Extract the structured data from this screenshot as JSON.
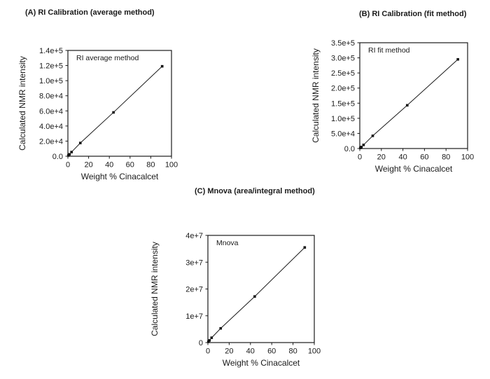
{
  "page": {
    "background": "#ffffff",
    "text_color": "#1a1a1a",
    "plot_color": "#1a1a1a"
  },
  "chart_data": [
    {
      "type": "scatter",
      "panel": "A",
      "title": "(A) RI Calibration (average method)",
      "legend": "RI average method",
      "xlabel": "Weight % Cinacalcet",
      "ylabel": "Calculated NMR intensity",
      "xlim": [
        0,
        100
      ],
      "ylim": [
        0,
        140000
      ],
      "x_tick_values": [
        0,
        20,
        40,
        60,
        80,
        100
      ],
      "x_tick_labels": [
        "0",
        "20",
        "40",
        "60",
        "80",
        "100"
      ],
      "y_tick_values": [
        0,
        20000,
        40000,
        60000,
        80000,
        100000,
        120000,
        140000
      ],
      "y_tick_labels": [
        "0.0",
        "2.0e+4",
        "4.0e+4",
        "6.0e+4",
        "8.0e+4",
        "1.0e+5",
        "1.2e+5",
        "1.4e+5"
      ],
      "x": [
        0.5,
        1.5,
        3.5,
        12,
        44,
        91
      ],
      "y": [
        1000,
        2500,
        5500,
        17500,
        58000,
        119000
      ],
      "marker": "square",
      "line": true,
      "grid": false,
      "legend_position": "top-left-inside"
    },
    {
      "type": "scatter",
      "panel": "B",
      "title": "(B) RI Calibration (fit method)",
      "legend": "RI fit method",
      "xlabel": "Weight % Cinacalcet",
      "ylabel": "Calculated NMR intensity",
      "xlim": [
        0,
        100
      ],
      "ylim": [
        0,
        350000
      ],
      "x_tick_values": [
        0,
        20,
        40,
        60,
        80,
        100
      ],
      "x_tick_labels": [
        "0",
        "20",
        "40",
        "60",
        "80",
        "100"
      ],
      "y_tick_values": [
        0,
        50000,
        100000,
        150000,
        200000,
        250000,
        300000,
        350000
      ],
      "y_tick_labels": [
        "0.0",
        "5.0e+4",
        "1.0e+5",
        "1.5e+5",
        "2.0e+5",
        "2.5e+5",
        "3.0e+5",
        "3.5e+5"
      ],
      "x": [
        0.5,
        1.5,
        3.5,
        12,
        44,
        91
      ],
      "y": [
        2000,
        5000,
        12000,
        42000,
        143000,
        295000
      ],
      "marker": "square",
      "line": true,
      "grid": false,
      "legend_position": "top-left-inside"
    },
    {
      "type": "scatter",
      "panel": "C",
      "title": "(C) Mnova (area/integral method)",
      "legend": "Mnova",
      "xlabel": "Weight % Cinacalcet",
      "ylabel": "Calculated NMR intensity",
      "xlim": [
        0,
        100
      ],
      "ylim": [
        0,
        40000000
      ],
      "x_tick_values": [
        0,
        20,
        40,
        60,
        80,
        100
      ],
      "x_tick_labels": [
        "0",
        "20",
        "40",
        "60",
        "80",
        "100"
      ],
      "y_tick_values": [
        0,
        10000000,
        20000000,
        30000000,
        40000000
      ],
      "y_tick_labels": [
        "0",
        "1e+7",
        "2e+7",
        "3e+7",
        "4e+7"
      ],
      "x": [
        0.5,
        1.5,
        3.5,
        12,
        44,
        91
      ],
      "y": [
        300000,
        800000,
        1800000,
        5300000,
        17200000,
        35500000
      ],
      "marker": "square",
      "line": true,
      "grid": false,
      "legend_position": "top-left-inside"
    }
  ]
}
